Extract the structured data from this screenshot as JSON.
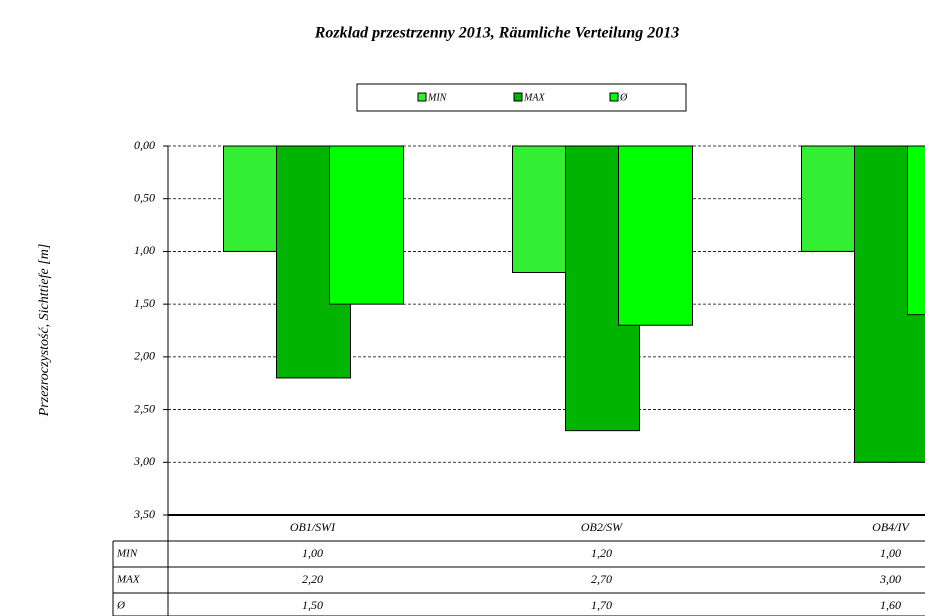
{
  "chart_data": {
    "type": "bar",
    "title": "Rozklad przestrzenny 2013, Räumliche Verteilung 2013",
    "y_label": "Przezroczystość, Sichttiefe [m]",
    "categories": [
      "OB1/SWI",
      "OB2/SW",
      "OB4/IV"
    ],
    "series": [
      {
        "name": "MIN",
        "color": "#33ee33",
        "values": [
          1.0,
          1.2,
          1.0
        ],
        "value_labels": [
          "1,00",
          "1,20",
          "1,00"
        ]
      },
      {
        "name": "MAX",
        "color": "#00b400",
        "values": [
          2.2,
          2.7,
          3.0
        ],
        "value_labels": [
          "2,20",
          "2,70",
          "3,00"
        ]
      },
      {
        "name": "Ø",
        "color": "#00ff00",
        "values": [
          1.5,
          1.7,
          1.6
        ],
        "value_labels": [
          "1,50",
          "1,70",
          "1,60"
        ]
      }
    ],
    "ylim": [
      0,
      3.5
    ],
    "y_inverted": true,
    "yticks": [
      {
        "value": 0,
        "label": "0,00"
      },
      {
        "value": 0.5,
        "label": "0,50"
      },
      {
        "value": 1,
        "label": "1,00"
      },
      {
        "value": 1.5,
        "label": "1,50"
      },
      {
        "value": 2,
        "label": "2,00"
      },
      {
        "value": 2.5,
        "label": "2,50"
      },
      {
        "value": 3,
        "label": "3,00"
      },
      {
        "value": 3.5,
        "label": "3,50"
      }
    ],
    "grid": true,
    "legend": "top"
  }
}
